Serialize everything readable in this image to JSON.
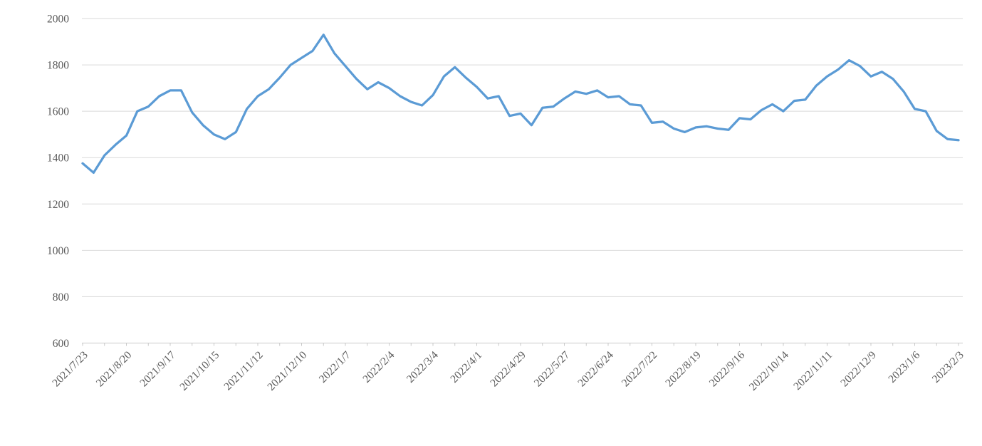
{
  "chart_data": {
    "type": "line",
    "title": "",
    "xlabel": "",
    "ylabel": "",
    "x": [
      "2021/7/23",
      "2021/7/30",
      "2021/8/6",
      "2021/8/13",
      "2021/8/20",
      "2021/8/27",
      "2021/9/3",
      "2021/9/10",
      "2021/9/17",
      "2021/9/24",
      "2021/10/1",
      "2021/10/8",
      "2021/10/15",
      "2021/10/22",
      "2021/10/29",
      "2021/11/5",
      "2021/11/12",
      "2021/11/19",
      "2021/11/26",
      "2021/12/3",
      "2021/12/10",
      "2021/12/17",
      "2021/12/24",
      "2021/12/31",
      "2022/1/7",
      "2022/1/14",
      "2022/1/21",
      "2022/1/28",
      "2022/2/4",
      "2022/2/11",
      "2022/2/18",
      "2022/2/25",
      "2022/3/4",
      "2022/3/11",
      "2022/3/18",
      "2022/3/25",
      "2022/4/1",
      "2022/4/8",
      "2022/4/15",
      "2022/4/22",
      "2022/4/29",
      "2022/5/6",
      "2022/5/13",
      "2022/5/20",
      "2022/5/27",
      "2022/6/3",
      "2022/6/10",
      "2022/6/17",
      "2022/6/24",
      "2022/7/1",
      "2022/7/8",
      "2022/7/15",
      "2022/7/22",
      "2022/7/29",
      "2022/8/5",
      "2022/8/12",
      "2022/8/19",
      "2022/8/26",
      "2022/9/2",
      "2022/9/9",
      "2022/9/16",
      "2022/9/23",
      "2022/9/30",
      "2022/10/7",
      "2022/10/14",
      "2022/10/21",
      "2022/10/28",
      "2022/11/4",
      "2022/11/11",
      "2022/11/18",
      "2022/11/25",
      "2022/12/2",
      "2022/12/9",
      "2022/12/16",
      "2022/12/23",
      "2022/12/30",
      "2023/1/6",
      "2023/1/13",
      "2023/1/20",
      "2023/1/27",
      "2023/2/3"
    ],
    "values": [
      1375,
      1335,
      1410,
      1455,
      1495,
      1600,
      1620,
      1665,
      1690,
      1690,
      1595,
      1540,
      1500,
      1480,
      1510,
      1610,
      1665,
      1695,
      1745,
      1800,
      1830,
      1860,
      1930,
      1850,
      1795,
      1740,
      1695,
      1725,
      1700,
      1665,
      1640,
      1625,
      1670,
      1750,
      1790,
      1745,
      1705,
      1655,
      1665,
      1580,
      1590,
      1540,
      1615,
      1620,
      1655,
      1685,
      1675,
      1690,
      1660,
      1665,
      1630,
      1625,
      1550,
      1555,
      1525,
      1510,
      1530,
      1535,
      1525,
      1520,
      1570,
      1565,
      1605,
      1630,
      1600,
      1645,
      1650,
      1710,
      1750,
      1780,
      1820,
      1795,
      1750,
      1770,
      1740,
      1685,
      1610,
      1600,
      1515,
      1480,
      1475
    ],
    "ylim": [
      600,
      2000
    ],
    "yticks": [
      600,
      800,
      1000,
      1200,
      1400,
      1600,
      1800,
      2000
    ],
    "x_label_every": 4,
    "x_tick_every": 2,
    "x_label_rotation_deg": -45,
    "grid": "horizontal",
    "legend": "none",
    "colors": {
      "line": "#5B9BD5",
      "gridline": "#D9D9D9",
      "axis_line": "#C9C9C9",
      "tick": "#C9C9C9",
      "label_text": "#595959",
      "background": "#FFFFFF"
    }
  }
}
